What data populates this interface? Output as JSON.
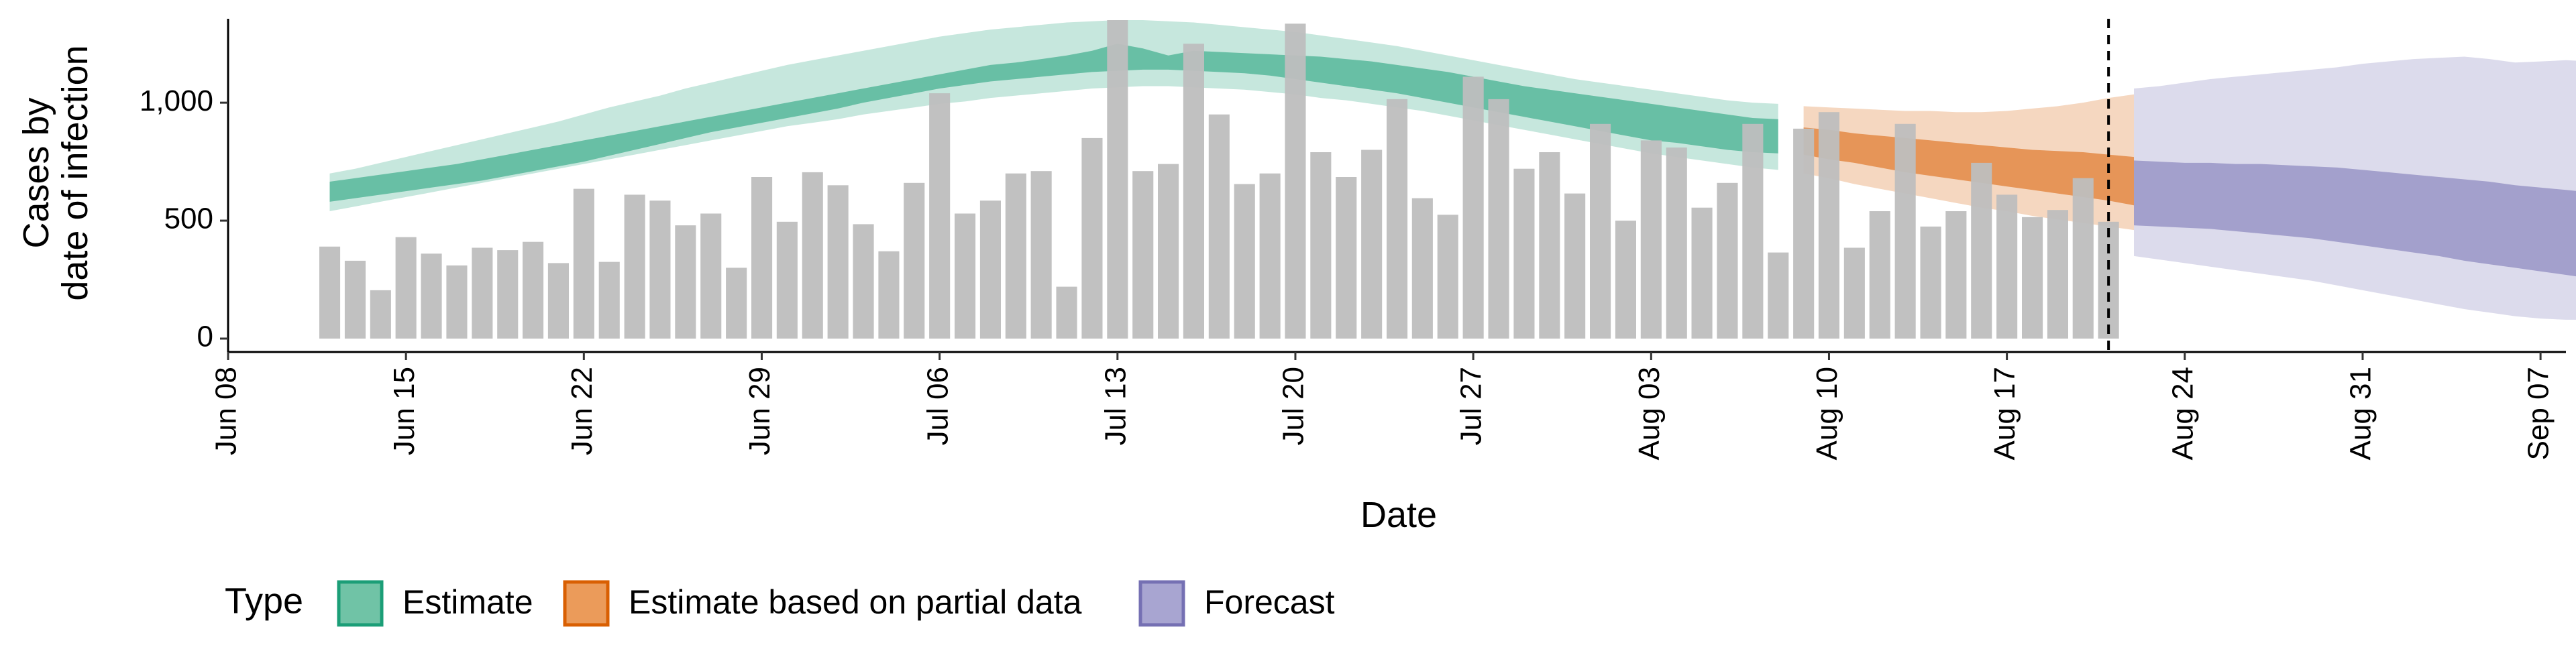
{
  "chart_data": {
    "type": "bar",
    "xlabel": "Date",
    "ylabel_lines": [
      "Cases by",
      "date of infection"
    ],
    "x_ticks": [
      {
        "date": "2020-06-08",
        "label": "Jun 08"
      },
      {
        "date": "2020-06-15",
        "label": "Jun 15"
      },
      {
        "date": "2020-06-22",
        "label": "Jun 22"
      },
      {
        "date": "2020-06-29",
        "label": "Jun 29"
      },
      {
        "date": "2020-07-06",
        "label": "Jul 06"
      },
      {
        "date": "2020-07-13",
        "label": "Jul 13"
      },
      {
        "date": "2020-07-20",
        "label": "Jul 20"
      },
      {
        "date": "2020-07-27",
        "label": "Jul 27"
      },
      {
        "date": "2020-08-03",
        "label": "Aug 03"
      },
      {
        "date": "2020-08-10",
        "label": "Aug 10"
      },
      {
        "date": "2020-08-17",
        "label": "Aug 17"
      },
      {
        "date": "2020-08-24",
        "label": "Aug 24"
      },
      {
        "date": "2020-08-31",
        "label": "Aug 31"
      },
      {
        "date": "2020-09-07",
        "label": "Sep 07"
      }
    ],
    "y_ticks": [
      {
        "value": 0,
        "label": "0"
      },
      {
        "value": 500,
        "label": "500"
      },
      {
        "value": 1000,
        "label": "1,000"
      }
    ],
    "xlim": [
      "2020-06-08",
      "2020-09-08"
    ],
    "ylim": [
      0,
      1350
    ],
    "grid": false,
    "legend_position": "bottom",
    "legend_title": "Type",
    "legend": [
      {
        "label": "Estimate",
        "fill": "#70c3a6",
        "stroke": "#1b9e77"
      },
      {
        "label": "Estimate based on partial data",
        "fill": "#eb9b5a",
        "stroke": "#d95f02"
      },
      {
        "label": "Forecast",
        "fill": "#a8a5d1",
        "stroke": "#7570b3"
      }
    ],
    "bar_color": "#bebebe",
    "reported_cases": {
      "start_date": "2020-06-12",
      "values": [
        390,
        330,
        205,
        430,
        360,
        310,
        385,
        375,
        410,
        320,
        635,
        325,
        610,
        585,
        480,
        530,
        300,
        685,
        495,
        705,
        650,
        485,
        370,
        660,
        1040,
        530,
        585,
        700,
        710,
        220,
        850,
        1350,
        710,
        740,
        1250,
        950,
        655,
        700,
        1335,
        790,
        685,
        800,
        1015,
        595,
        525,
        1110,
        1015,
        720,
        790,
        615,
        910,
        500,
        840,
        810,
        555,
        660,
        910,
        365,
        890,
        960,
        385,
        540,
        910,
        475,
        540,
        745,
        610,
        515,
        545,
        680,
        495
      ]
    },
    "vline_date": "2020-08-21",
    "estimate": {
      "start_date": "2020-06-12",
      "lower90": [
        540,
        560,
        580,
        600,
        620,
        640,
        660,
        680,
        700,
        720,
        740,
        760,
        780,
        800,
        820,
        840,
        860,
        880,
        900,
        915,
        930,
        950,
        965,
        980,
        995,
        1005,
        1020,
        1030,
        1040,
        1050,
        1060,
        1065,
        1070,
        1070,
        1065,
        1060,
        1055,
        1045,
        1035,
        1020,
        1010,
        995,
        980,
        965,
        945,
        925,
        905,
        885,
        865,
        845,
        825,
        805,
        785,
        770,
        755,
        740,
        725,
        715
      ],
      "upper90": [
        700,
        720,
        745,
        770,
        795,
        820,
        845,
        870,
        895,
        920,
        950,
        980,
        1005,
        1030,
        1060,
        1085,
        1110,
        1135,
        1160,
        1180,
        1200,
        1220,
        1240,
        1260,
        1280,
        1295,
        1310,
        1320,
        1330,
        1340,
        1345,
        1350,
        1350,
        1345,
        1340,
        1330,
        1320,
        1310,
        1300,
        1285,
        1270,
        1255,
        1240,
        1220,
        1200,
        1180,
        1160,
        1140,
        1120,
        1100,
        1085,
        1070,
        1055,
        1040,
        1025,
        1010,
        1000,
        995
      ],
      "lower50": [
        580,
        595,
        610,
        625,
        640,
        655,
        670,
        690,
        710,
        730,
        750,
        775,
        800,
        825,
        850,
        875,
        895,
        915,
        935,
        955,
        975,
        1000,
        1020,
        1040,
        1060,
        1075,
        1090,
        1100,
        1110,
        1120,
        1130,
        1135,
        1140,
        1140,
        1135,
        1130,
        1125,
        1115,
        1100,
        1085,
        1070,
        1055,
        1040,
        1020,
        1000,
        980,
        960,
        940,
        920,
        900,
        880,
        860,
        840,
        830,
        815,
        800,
        790,
        785
      ],
      "upper50": [
        665,
        680,
        695,
        710,
        725,
        740,
        760,
        780,
        800,
        820,
        840,
        860,
        880,
        900,
        920,
        940,
        960,
        980,
        1000,
        1020,
        1040,
        1060,
        1080,
        1100,
        1120,
        1140,
        1160,
        1170,
        1185,
        1200,
        1220,
        1250,
        1230,
        1200,
        1220,
        1215,
        1210,
        1205,
        1200,
        1195,
        1185,
        1175,
        1160,
        1145,
        1130,
        1110,
        1090,
        1070,
        1055,
        1040,
        1025,
        1010,
        995,
        980,
        965,
        950,
        935,
        930
      ]
    },
    "partial_estimate": {
      "start_date": "2020-08-09",
      "lower90": [
        700,
        680,
        655,
        635,
        615,
        595,
        575,
        555,
        540,
        520,
        505,
        490,
        475,
        460
      ],
      "upper90": [
        985,
        980,
        975,
        970,
        965,
        965,
        960,
        960,
        965,
        975,
        985,
        1000,
        1020,
        1035
      ],
      "lower50": [
        780,
        760,
        745,
        725,
        705,
        690,
        675,
        660,
        645,
        630,
        615,
        600,
        585,
        565
      ],
      "upper50": [
        895,
        885,
        870,
        860,
        850,
        840,
        830,
        820,
        810,
        800,
        795,
        790,
        780,
        770
      ]
    },
    "forecast": {
      "start_date": "2020-08-22",
      "lower90": [
        350,
        335,
        320,
        305,
        290,
        275,
        260,
        245,
        225,
        205,
        185,
        165,
        145,
        125,
        110,
        95,
        85,
        80,
        80,
        75
      ],
      "upper90": [
        1060,
        1070,
        1085,
        1100,
        1110,
        1120,
        1130,
        1140,
        1150,
        1165,
        1175,
        1185,
        1190,
        1195,
        1185,
        1170,
        1175,
        1180,
        1175,
        1170
      ],
      "lower50": [
        480,
        475,
        470,
        465,
        455,
        445,
        435,
        425,
        410,
        395,
        380,
        365,
        350,
        330,
        315,
        300,
        285,
        270,
        255,
        240
      ],
      "upper50": [
        755,
        750,
        745,
        745,
        740,
        740,
        735,
        730,
        725,
        715,
        705,
        695,
        685,
        675,
        665,
        650,
        640,
        630,
        620,
        610
      ]
    }
  }
}
